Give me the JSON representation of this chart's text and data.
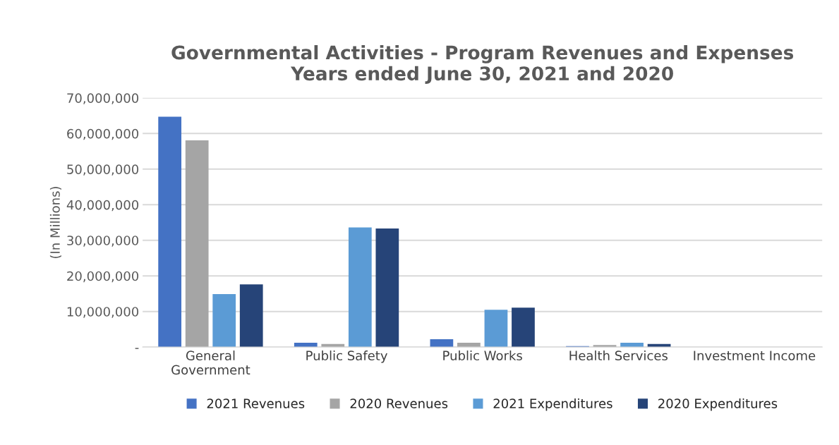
{
  "chart_data": {
    "type": "bar",
    "title": "Governmental Activities - Program Revenues and Expenses\nYears ended June 30, 2021 and 2020",
    "ylabel": "(In Millions)",
    "categories": [
      "General\nGovernment",
      "Public Safety",
      "Public Works",
      "Health Services",
      "Investment Income"
    ],
    "series": [
      {
        "name": "2021 Revenues",
        "color": "#4472c4",
        "values": [
          64700000,
          1200000,
          2200000,
          300000,
          null
        ]
      },
      {
        "name": "2020 Revenues",
        "color": "#a5a5a5",
        "values": [
          58100000,
          900000,
          1200000,
          600000,
          null
        ]
      },
      {
        "name": "2021 Expenditures",
        "color": "#5b9bd5",
        "values": [
          14900000,
          33600000,
          10500000,
          1200000,
          null
        ]
      },
      {
        "name": "2020 Expenditures",
        "color": "#264478",
        "values": [
          17600000,
          33300000,
          11100000,
          900000,
          null
        ]
      }
    ],
    "ylim": [
      0,
      70000000
    ],
    "yticks": [
      {
        "value": 0,
        "label": "-"
      },
      {
        "value": 10000000,
        "label": "10,000,000"
      },
      {
        "value": 20000000,
        "label": "20,000,000"
      },
      {
        "value": 30000000,
        "label": "30,000,000"
      },
      {
        "value": 40000000,
        "label": "40,000,000"
      },
      {
        "value": 50000000,
        "label": "50,000,000"
      },
      {
        "value": 60000000,
        "label": "60,000,000"
      },
      {
        "value": 70000000,
        "label": "70,000,000"
      }
    ],
    "grid": "y",
    "legend": "bottom"
  }
}
